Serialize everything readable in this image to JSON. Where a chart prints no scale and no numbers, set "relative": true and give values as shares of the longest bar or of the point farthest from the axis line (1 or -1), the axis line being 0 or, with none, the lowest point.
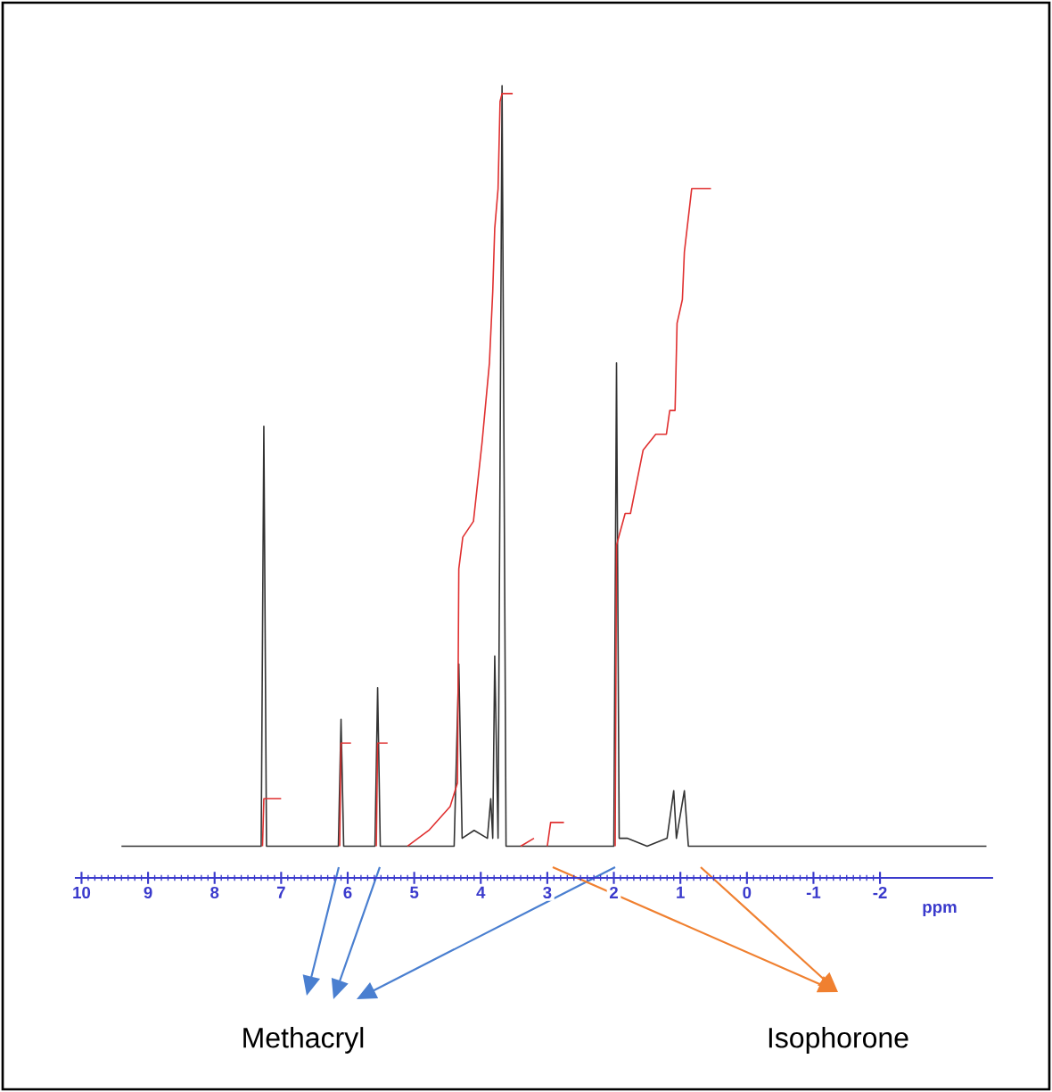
{
  "chart_data": {
    "type": "line",
    "relative": true,
    "xlabel": "ppm",
    "xlim": [
      10.1,
      -3.7
    ],
    "xticks": [
      10,
      9,
      8,
      7,
      6,
      5,
      4,
      3,
      2,
      1,
      0,
      -1,
      -2
    ],
    "annotations": [
      "Methacryl",
      "Isophorone"
    ],
    "series": [
      {
        "color": "#333333",
        "x": [
          9.4,
          7.3,
          7.26,
          7.22,
          6.14,
          6.1,
          6.06,
          5.59,
          5.55,
          5.51,
          4.4,
          4.33,
          4.28,
          4.1,
          3.9,
          3.85,
          3.82,
          3.79,
          3.74,
          3.68,
          3.62,
          2.0,
          1.96,
          1.92,
          1.8,
          1.5,
          1.2,
          1.1,
          1.06,
          0.94,
          0.88,
          -3.6
        ],
        "values": [
          0.04,
          0.04,
          0.57,
          0.04,
          0.04,
          0.2,
          0.04,
          0.04,
          0.24,
          0.04,
          0.04,
          0.27,
          0.05,
          0.06,
          0.05,
          0.1,
          0.05,
          0.28,
          0.05,
          1.0,
          0.04,
          0.04,
          0.65,
          0.05,
          0.05,
          0.04,
          0.05,
          0.11,
          0.05,
          0.11,
          0.04,
          0.04
        ]
      },
      {
        "color": "#e03030",
        "x": [
          7.28,
          7.26,
          7.0,
          null,
          6.12,
          6.1,
          5.95,
          null,
          5.57,
          5.55,
          5.4,
          null,
          5.1,
          4.78,
          4.46,
          4.35,
          4.33,
          4.27,
          4.11,
          3.98,
          3.87,
          3.82,
          3.79,
          3.74,
          3.71,
          3.68,
          3.52,
          null,
          3.4,
          3.2,
          null,
          3.0,
          2.95,
          2.75,
          null,
          1.98,
          1.96,
          1.83,
          1.75,
          1.56,
          1.37,
          1.21,
          1.16,
          1.08,
          1.05,
          0.97,
          0.94,
          0.83,
          0.54
        ],
        "values": [
          0.04,
          0.1,
          0.1,
          null,
          0.04,
          0.17,
          0.17,
          null,
          0.04,
          0.17,
          0.17,
          null,
          0.04,
          0.06,
          0.09,
          0.12,
          0.39,
          0.43,
          0.45,
          0.55,
          0.65,
          0.74,
          0.82,
          0.87,
          0.98,
          0.99,
          0.99,
          null,
          0.04,
          0.05,
          null,
          0.04,
          0.07,
          0.07,
          null,
          0.04,
          0.42,
          0.46,
          0.46,
          0.54,
          0.56,
          0.56,
          0.59,
          0.59,
          0.7,
          0.73,
          0.79,
          0.87,
          0.87
        ]
      }
    ]
  }
}
